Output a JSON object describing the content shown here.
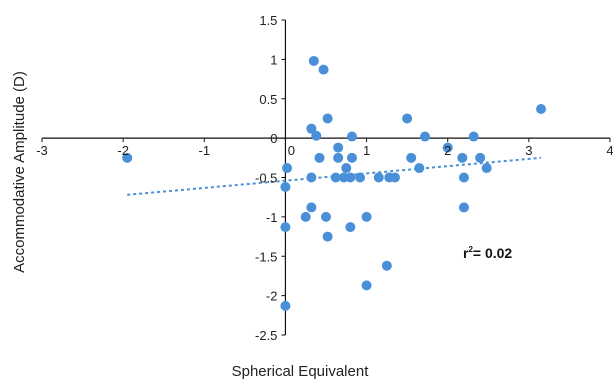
{
  "chart_data": {
    "type": "scatter",
    "xlabel": "Spherical Equivalent",
    "ylabel": "Accommodative Amplitude (D)",
    "xlim": [
      -3,
      4
    ],
    "ylim": [
      -2.5,
      1.5
    ],
    "xticks": [
      -3,
      -2,
      -1,
      0,
      1,
      2,
      3,
      4
    ],
    "yticks": [
      1.5,
      1,
      0.5,
      0,
      -0.5,
      -1,
      -1.5,
      -2,
      -2.5
    ],
    "grid": false,
    "point_color": "#4a90d9",
    "trendline": {
      "style": "dotted",
      "color": "#4a90d9",
      "from": [
        -1.95,
        -0.72
      ],
      "to": [
        3.15,
        -0.25
      ]
    },
    "annotation": {
      "base": "r",
      "superscript": "2",
      "rest": "= 0.02"
    },
    "points": [
      {
        "x": -1.95,
        "y": -0.25
      },
      {
        "x": 0.0,
        "y": -2.13
      },
      {
        "x": 0.0,
        "y": -1.13
      },
      {
        "x": 0.0,
        "y": -0.62
      },
      {
        "x": 0.02,
        "y": -0.38
      },
      {
        "x": 0.25,
        "y": -1.0
      },
      {
        "x": 0.32,
        "y": -0.88
      },
      {
        "x": 0.32,
        "y": -0.5
      },
      {
        "x": 0.32,
        "y": 0.12
      },
      {
        "x": 0.35,
        "y": 0.98
      },
      {
        "x": 0.38,
        "y": 0.03
      },
      {
        "x": 0.42,
        "y": -0.25
      },
      {
        "x": 0.47,
        "y": 0.87
      },
      {
        "x": 0.5,
        "y": -1.0
      },
      {
        "x": 0.52,
        "y": -1.25
      },
      {
        "x": 0.52,
        "y": 0.25
      },
      {
        "x": 0.62,
        "y": -0.5
      },
      {
        "x": 0.65,
        "y": -0.12
      },
      {
        "x": 0.65,
        "y": -0.25
      },
      {
        "x": 0.72,
        "y": -0.5
      },
      {
        "x": 0.75,
        "y": -0.38
      },
      {
        "x": 0.8,
        "y": -1.13
      },
      {
        "x": 0.8,
        "y": -0.5
      },
      {
        "x": 0.82,
        "y": -0.25
      },
      {
        "x": 0.82,
        "y": 0.02
      },
      {
        "x": 0.92,
        "y": -0.5
      },
      {
        "x": 1.0,
        "y": -1.87
      },
      {
        "x": 1.0,
        "y": -1.0
      },
      {
        "x": 1.15,
        "y": -0.5
      },
      {
        "x": 1.25,
        "y": -1.62
      },
      {
        "x": 1.28,
        "y": -0.5
      },
      {
        "x": 1.35,
        "y": -0.5
      },
      {
        "x": 1.5,
        "y": 0.25
      },
      {
        "x": 1.55,
        "y": -0.25
      },
      {
        "x": 1.65,
        "y": -0.38
      },
      {
        "x": 1.72,
        "y": 0.02
      },
      {
        "x": 2.0,
        "y": -0.12
      },
      {
        "x": 2.18,
        "y": -0.25
      },
      {
        "x": 2.2,
        "y": -0.5
      },
      {
        "x": 2.2,
        "y": -0.88
      },
      {
        "x": 2.32,
        "y": 0.02
      },
      {
        "x": 2.4,
        "y": -0.25
      },
      {
        "x": 2.48,
        "y": -0.38
      },
      {
        "x": 3.15,
        "y": 0.37
      }
    ]
  }
}
